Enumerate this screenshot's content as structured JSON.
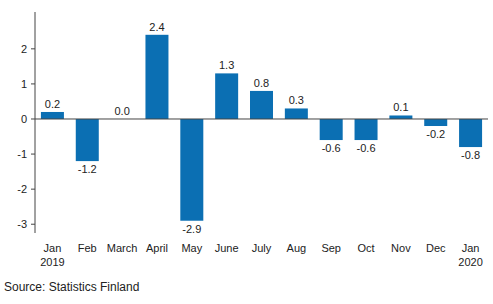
{
  "chart_data": {
    "type": "bar",
    "categories": [
      "Jan 2019",
      "Feb",
      "March",
      "April",
      "May",
      "June",
      "July",
      "Aug",
      "Sep",
      "Oct",
      "Nov",
      "Dec",
      "Jan 2020"
    ],
    "values": [
      0.2,
      -1.2,
      0.0,
      2.4,
      -2.9,
      1.3,
      0.8,
      0.3,
      -0.6,
      -0.6,
      0.1,
      -0.2,
      -0.8
    ],
    "value_labels": [
      "0.2",
      "-1.2",
      "0.0",
      "2.4",
      "-2.9",
      "1.3",
      "0.8",
      "0.3",
      "-0.6",
      "-0.6",
      "0.1",
      "-0.2",
      "-0.8"
    ],
    "color": "#0b6fb3",
    "ylim": [
      -3.25,
      3.05
    ],
    "yticks": [
      -3,
      -2,
      -1,
      0,
      1,
      2
    ],
    "grid": false,
    "data_labels": true,
    "source": "Source: Statistics Finland"
  }
}
